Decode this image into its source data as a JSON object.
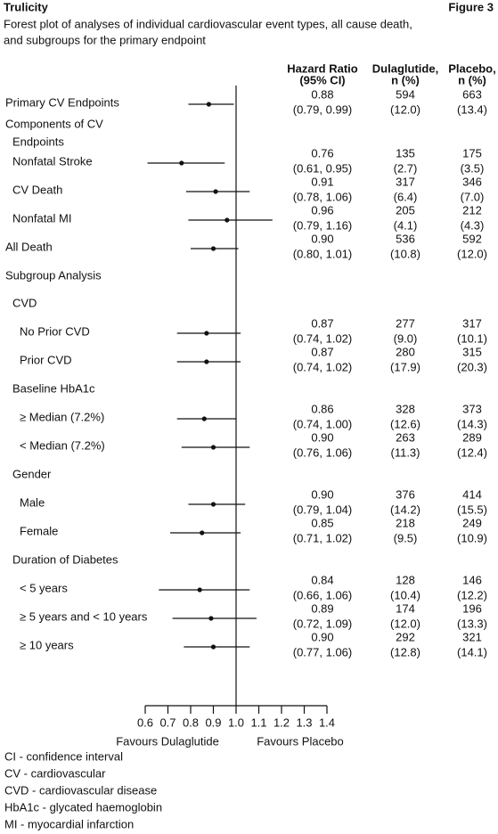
{
  "chart_data": {
    "type": "forest",
    "brand": "Trulicity",
    "figure_label": "Figure 3",
    "title_lines": [
      "Forest plot of analyses of individual cardiovascular event types, all cause death,",
      "and subgroups for the primary endpoint"
    ],
    "column_headers": [
      [
        "Hazard Ratio",
        "(95% CI)"
      ],
      [
        "Dulaglutide,",
        "n (%)"
      ],
      [
        "Placebo,",
        "n (%)"
      ]
    ],
    "rows": [
      {
        "label": "Primary CV Endpoints",
        "hr": 0.88,
        "hr_label": "0.88",
        "lo": 0.79,
        "hi": 0.99,
        "ci_label": "(0.79, 0.99)",
        "dul_n": 594,
        "dul_pct": "(12.0)",
        "plac_n": 663,
        "plac_pct": "(13.4)"
      },
      {
        "label": "Components of CV"
      },
      {
        "label": "Endpoints"
      },
      {
        "label": "Nonfatal Stroke",
        "hr": 0.76,
        "hr_label": "0.76",
        "lo": 0.61,
        "hi": 0.95,
        "ci_label": "(0.61, 0.95)",
        "dul_n": 135,
        "dul_pct": "(2.7)",
        "plac_n": 175,
        "plac_pct": "(3.5)"
      },
      {
        "label": "CV Death",
        "hr": 0.91,
        "hr_label": "0.91",
        "lo": 0.78,
        "hi": 1.06,
        "ci_label": "(0.78, 1.06)",
        "dul_n": 317,
        "dul_pct": "(6.4)",
        "plac_n": 346,
        "plac_pct": "(7.0)"
      },
      {
        "label": "Nonfatal MI",
        "hr": 0.96,
        "hr_label": "0.96",
        "lo": 0.79,
        "hi": 1.16,
        "ci_label": "(0.79, 1.16)",
        "dul_n": 205,
        "dul_pct": "(4.1)",
        "plac_n": 212,
        "plac_pct": "(4.3)"
      },
      {
        "label": "All Death",
        "hr": 0.9,
        "hr_label": "0.90",
        "lo": 0.8,
        "hi": 1.01,
        "ci_label": "(0.80, 1.01)",
        "dul_n": 536,
        "dul_pct": "(10.8)",
        "plac_n": 592,
        "plac_pct": "(12.0)"
      },
      {
        "label": "Subgroup Analysis"
      },
      {
        "label": "CVD"
      },
      {
        "label": "No Prior CVD",
        "hr": 0.87,
        "hr_label": "0.87",
        "lo": 0.74,
        "hi": 1.02,
        "ci_label": "(0.74, 1.02)",
        "dul_n": 277,
        "dul_pct": "(9.0)",
        "plac_n": 317,
        "plac_pct": "(10.1)"
      },
      {
        "label": "Prior CVD",
        "hr": 0.87,
        "hr_label": "0.87",
        "lo": 0.74,
        "hi": 1.02,
        "ci_label": "(0.74, 1.02)",
        "dul_n": 280,
        "dul_pct": "(17.9)",
        "plac_n": 315,
        "plac_pct": "(20.3)"
      },
      {
        "label": "Baseline HbA1c"
      },
      {
        "label": "≥ Median (7.2%)",
        "hr": 0.86,
        "hr_label": "0.86",
        "lo": 0.74,
        "hi": 1.0,
        "ci_label": "(0.74, 1.00)",
        "dul_n": 328,
        "dul_pct": "(12.6)",
        "plac_n": 373,
        "plac_pct": "(14.3)"
      },
      {
        "label": "< Median (7.2%)",
        "hr": 0.9,
        "hr_label": "0.90",
        "lo": 0.76,
        "hi": 1.06,
        "ci_label": "(0.76, 1.06)",
        "dul_n": 263,
        "dul_pct": "(11.3)",
        "plac_n": 289,
        "plac_pct": "(12.4)"
      },
      {
        "label": "Gender"
      },
      {
        "label": "Male",
        "hr": 0.9,
        "hr_label": "0.90",
        "lo": 0.79,
        "hi": 1.04,
        "ci_label": "(0.79, 1.04)",
        "dul_n": 376,
        "dul_pct": "(14.2)",
        "plac_n": 414,
        "plac_pct": "(15.5)"
      },
      {
        "label": "Female",
        "hr": 0.85,
        "hr_label": "0.85",
        "lo": 0.71,
        "hi": 1.02,
        "ci_label": "(0.71, 1.02)",
        "dul_n": 218,
        "dul_pct": "(9.5)",
        "plac_n": 249,
        "plac_pct": "(10.9)"
      },
      {
        "label": "Duration of Diabetes"
      },
      {
        "label": "< 5 years",
        "hr": 0.84,
        "hr_label": "0.84",
        "lo": 0.66,
        "hi": 1.06,
        "ci_label": "(0.66, 1.06)",
        "dul_n": 128,
        "dul_pct": "(10.4)",
        "plac_n": 146,
        "plac_pct": "(12.2)"
      },
      {
        "label": "≥ 5 years and < 10 years",
        "hr": 0.89,
        "hr_label": "0.89",
        "lo": 0.72,
        "hi": 1.09,
        "ci_label": "(0.72, 1.09)",
        "dul_n": 174,
        "dul_pct": "(12.0)",
        "plac_n": 196,
        "plac_pct": "(13.3)"
      },
      {
        "label": "≥ 10 years",
        "hr": 0.9,
        "hr_label": "0.90",
        "lo": 0.77,
        "hi": 1.06,
        "ci_label": "(0.77, 1.06)",
        "dul_n": 292,
        "dul_pct": "(12.8)",
        "plac_n": 321,
        "plac_pct": "(14.1)"
      }
    ],
    "xlim": [
      0.6,
      1.4
    ],
    "xticks": [
      0.6,
      0.7,
      0.8,
      0.9,
      {
        "value": 1,
        "label": "1.0"
      },
      1.1,
      1.2,
      1.3,
      1.4
    ],
    "x_labels": [
      "Favours Dulaglutide",
      "Favours Placebo"
    ],
    "footnotes": [
      "CI - confidence interval",
      "CV - cardiovascular",
      "CVD - cardiovascular disease",
      "HbA1c - glycated haemoglobin",
      "MI - myocardial infarction"
    ]
  }
}
